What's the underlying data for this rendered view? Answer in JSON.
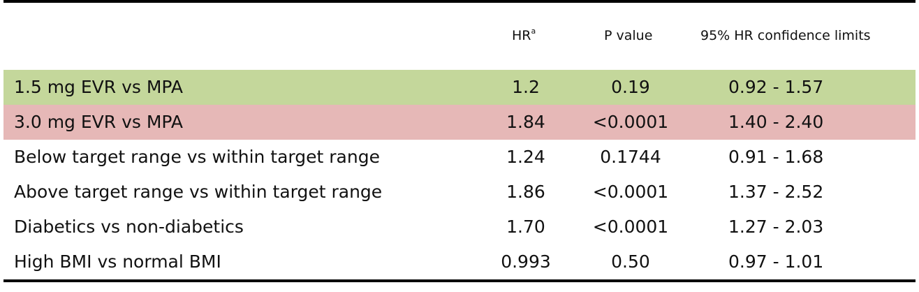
{
  "table": {
    "headers": {
      "hr": "HR",
      "hr_sup": "a",
      "p": "P  value",
      "ci": "95% HR confidence limits"
    },
    "rows": [
      {
        "label": "1.5 mg EVR vs MPA",
        "hr": "1.2",
        "p": "0.19",
        "ci": "0.92 - 1.57",
        "highlight": "#c4d79b"
      },
      {
        "label": "3.0 mg EVR vs MPA",
        "hr": "1.84",
        "p": "<0.0001",
        "ci": "1.40 - 2.40",
        "highlight": "#e6b8b7"
      },
      {
        "label": "Below target range vs within target range",
        "hr": "1.24",
        "p": "0.1744",
        "ci": "0.91 - 1.68"
      },
      {
        "label": "Above target range vs within target range",
        "hr": "1.86",
        "p": "<0.0001",
        "ci": "1.37 - 2.52"
      },
      {
        "label": "Diabetics vs non-diabetics",
        "hr": "1.70",
        "p": "<0.0001",
        "ci": "1.27 - 2.03"
      },
      {
        "label": "High BMI vs normal BMI",
        "hr": "0.993",
        "p": "0.50",
        "ci": "0.97 - 1.01"
      }
    ]
  }
}
